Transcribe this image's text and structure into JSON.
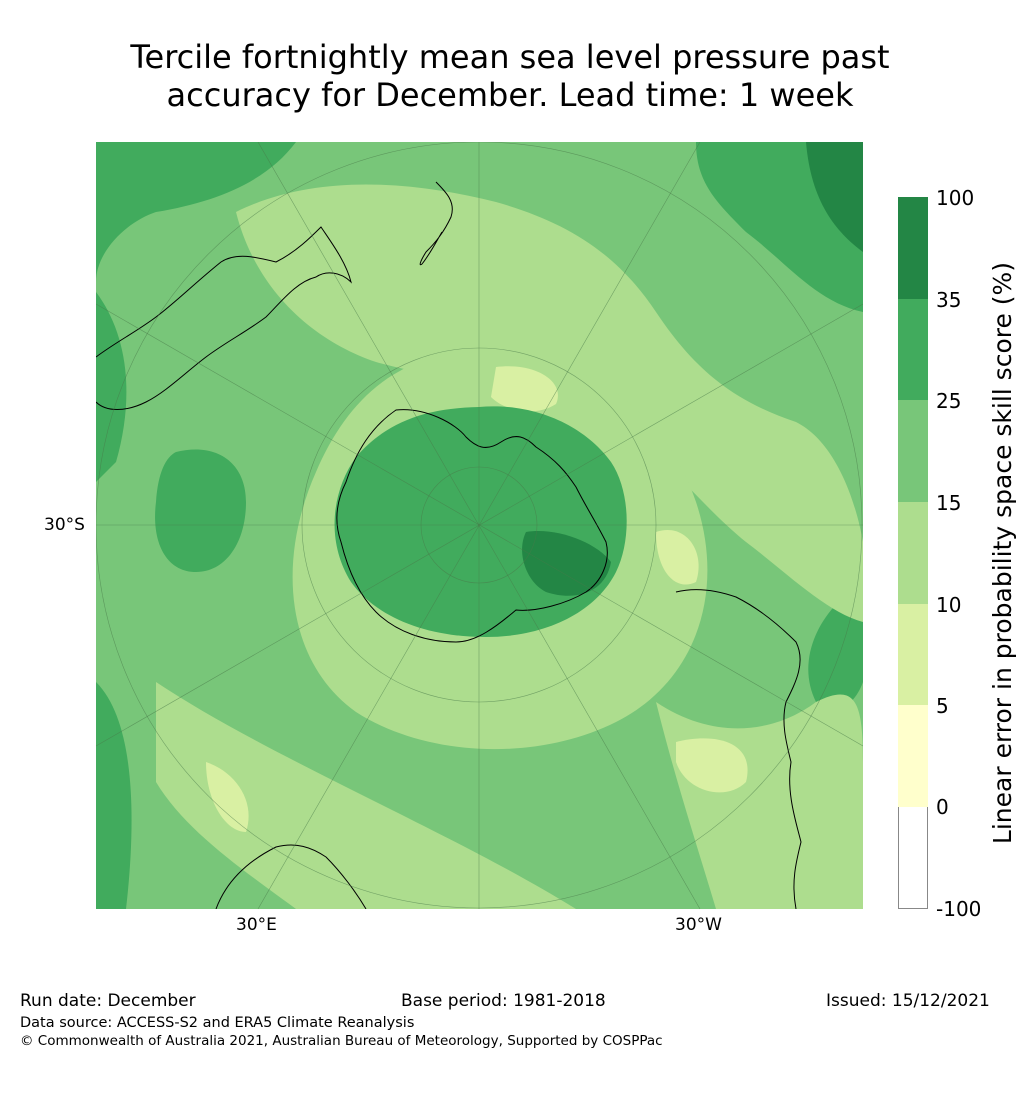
{
  "title": {
    "line1": "Tercile fortnightly mean sea level pressure past",
    "line2": "accuracy for December. Lead time: 1 week"
  },
  "map": {
    "projection": "south-polar-stereographic",
    "labels": {
      "lat_30s": "30°S",
      "lon_30e": "30°E",
      "lon_30w": "30°W"
    }
  },
  "colorbar": {
    "label": "Linear error in probability space skill score (%)",
    "ticks": [
      "100",
      "35",
      "25",
      "15",
      "10",
      "5",
      "0",
      "-100"
    ],
    "bins": [
      {
        "range": "35 to 100",
        "color": "#238645"
      },
      {
        "range": "25 to 35",
        "color": "#41ab5d"
      },
      {
        "range": "15 to 25",
        "color": "#78c679"
      },
      {
        "range": "10 to 15",
        "color": "#addd8e"
      },
      {
        "range": "5 to 10",
        "color": "#d9f0a3"
      },
      {
        "range": "0 to 5",
        "color": "#ffffcc"
      },
      {
        "range": "-100 to 0",
        "color": "#ffffff"
      }
    ]
  },
  "footer": {
    "run_date": "Run date: December",
    "base_period": "Base period: 1981-2018",
    "issued": "Issued: 15/12/2021",
    "data_source": "Data source: ACCESS-S2 and ERA5 Climate Reanalysis",
    "copyright": "© Commonwealth of Australia 2021, Australian Bureau of Meteorology, Supported by COSPPac"
  }
}
